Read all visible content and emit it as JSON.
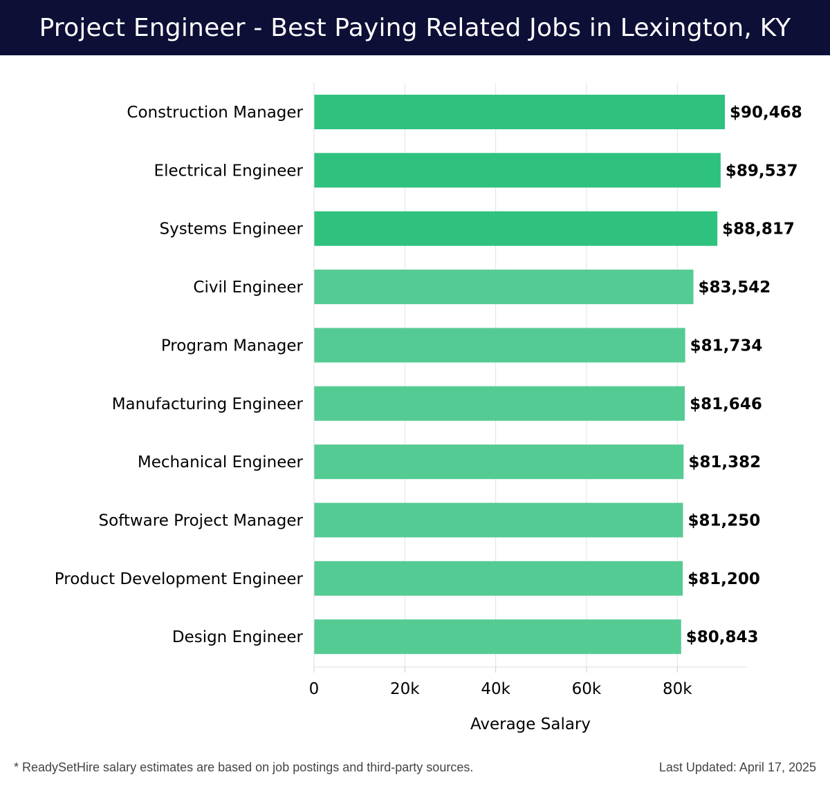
{
  "header": {
    "title": "Project Engineer - Best Paying Related Jobs in Lexington, KY",
    "background": "#0d0f36"
  },
  "chart_data": {
    "type": "bar",
    "orientation": "horizontal",
    "categories": [
      "Construction Manager",
      "Electrical Engineer",
      "Systems Engineer",
      "Civil Engineer",
      "Program Manager",
      "Manufacturing Engineer",
      "Mechanical Engineer",
      "Software Project Manager",
      "Product Development Engineer",
      "Design Engineer"
    ],
    "values": [
      90468,
      89537,
      88817,
      83542,
      81734,
      81646,
      81382,
      81250,
      81200,
      80843
    ],
    "value_labels": [
      "$90,468",
      "$89,537",
      "$88,817",
      "$83,542",
      "$81,734",
      "$81,646",
      "$81,382",
      "$81,250",
      "$81,200",
      "$80,843"
    ],
    "xlabel": "Average Salary",
    "xticks": [
      0,
      20000,
      40000,
      60000,
      80000
    ],
    "xtick_labels": [
      "0",
      "20k",
      "40k",
      "60k",
      "80k"
    ],
    "xlim": [
      0,
      95000
    ],
    "grid": true,
    "colors": {
      "top": "#2ec27e",
      "rest": "#55cb94"
    }
  },
  "footer": {
    "note": "* ReadySetHire salary estimates are based on job postings and third-party sources.",
    "updated": "Last Updated: April 17, 2025"
  }
}
